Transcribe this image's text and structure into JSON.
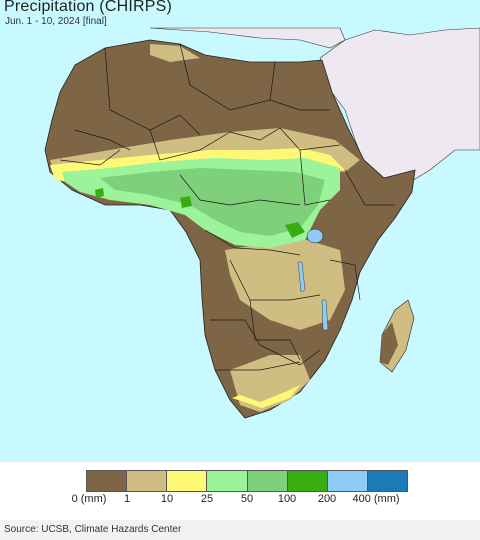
{
  "title": "Precipitation (CHIRPS)",
  "subtitle": "Jun. 1 - 10, 2024 [final]",
  "legend": {
    "colors": [
      "#7e6545",
      "#cfbd82",
      "#fdf977",
      "#9bf39a",
      "#7fd07a",
      "#38ad12",
      "#8fcbf8",
      "#1b7ab8"
    ],
    "labels": [
      "0 (mm)",
      "1",
      "10",
      "25",
      "50",
      "100",
      "200",
      "400 (mm)"
    ]
  },
  "source": "Source: UCSB, Climate Hazards Center",
  "colors": {
    "ocean": "#c8f9ff",
    "non_africa_land": "#eee9f0",
    "dry": "#7e6545",
    "light": "#cfbd82",
    "yellow": "#fdf977",
    "light_green": "#9bf39a",
    "mid_green": "#7fd07a",
    "dark_green": "#38ad12",
    "border": "#1a1a1a",
    "lake": "#8fcbf8"
  }
}
